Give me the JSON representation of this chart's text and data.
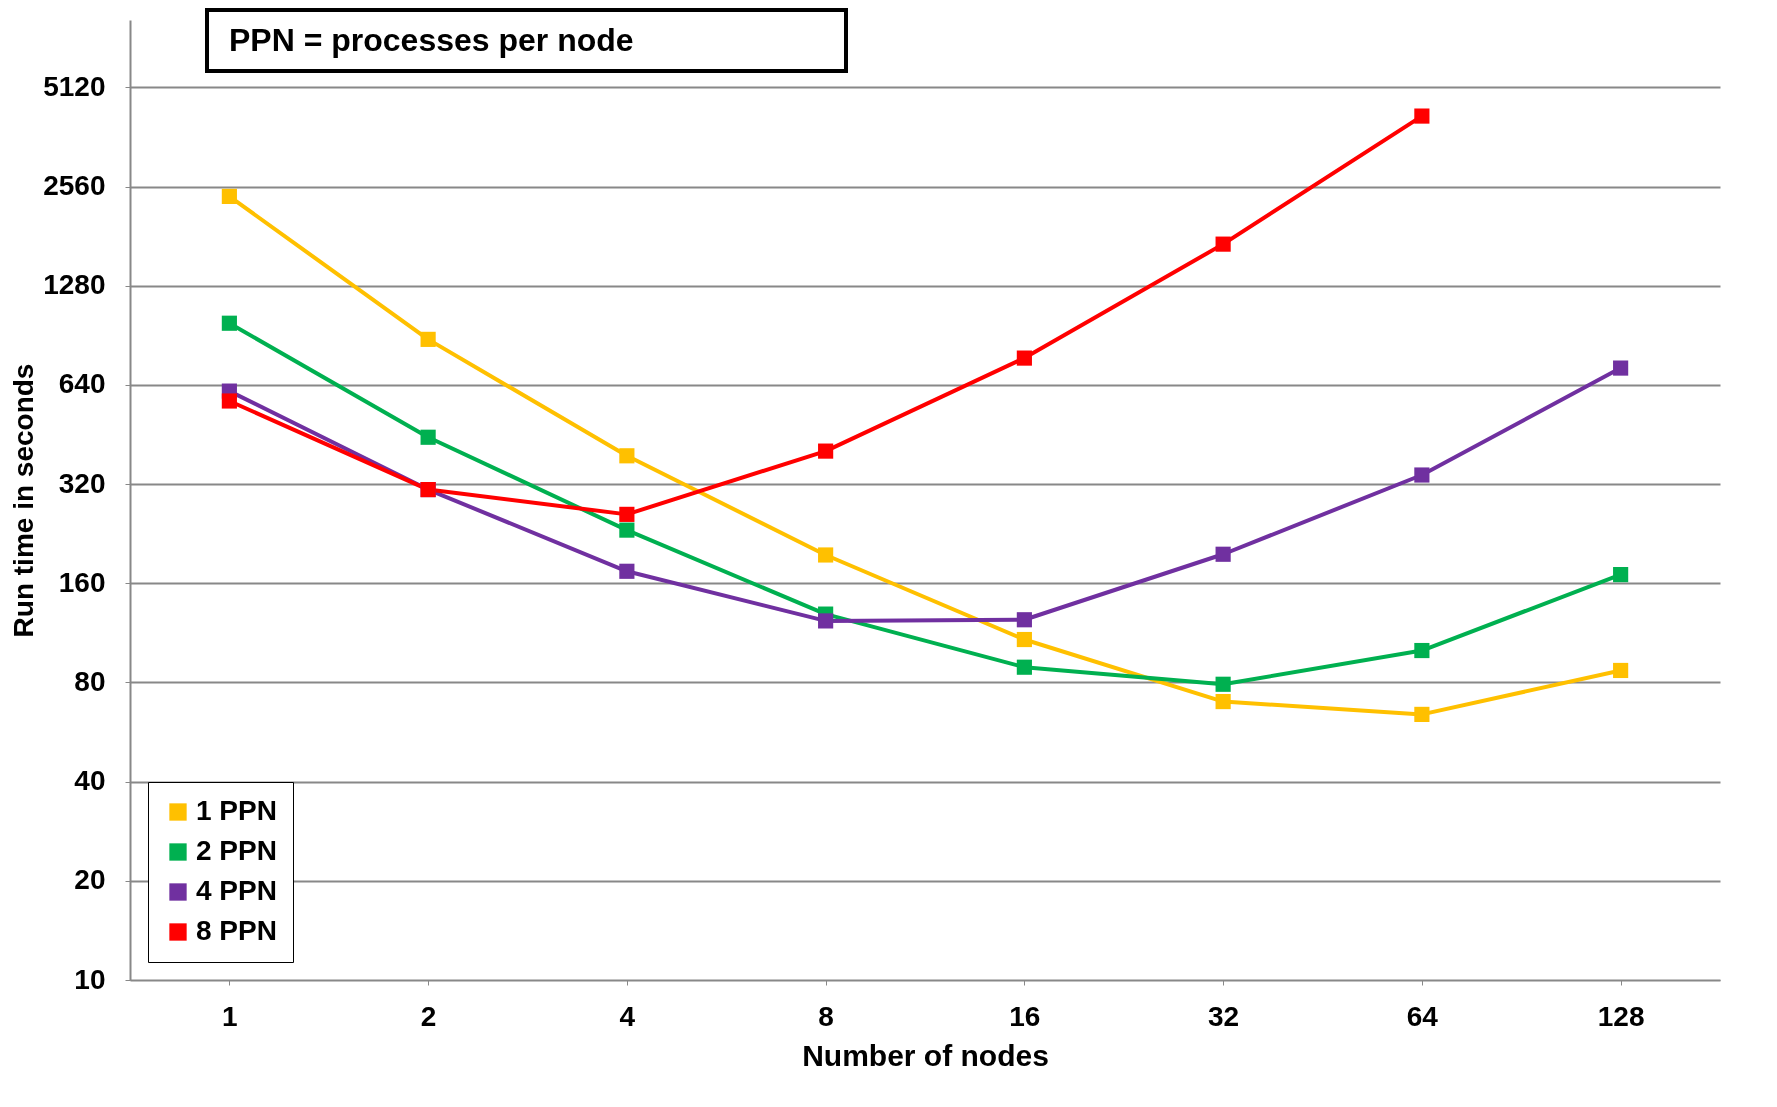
{
  "chart_data": {
    "type": "line",
    "title": "PPN = processes per node",
    "xlabel": "Number of nodes",
    "ylabel": "Run time in seconds",
    "categories": [
      "1",
      "2",
      "4",
      "8",
      "16",
      "32",
      "64",
      "128"
    ],
    "series": [
      {
        "name": "1 PPN",
        "color": "#ffc000",
        "values": [
          2390,
          880,
          390,
          195,
          108,
          70,
          64,
          87
        ]
      },
      {
        "name": "2 PPN",
        "color": "#00b050",
        "values": [
          985,
          444,
          232,
          129,
          89,
          79,
          100,
          170
        ]
      },
      {
        "name": "4 PPN",
        "color": "#7030a0",
        "values": [
          613,
          308,
          174,
          123,
          124,
          196,
          341,
          720
        ]
      },
      {
        "name": "8 PPN",
        "color": "#ff0000",
        "values": [
          572,
          308,
          259,
          403,
          772,
          1712,
          4190,
          null
        ]
      }
    ],
    "log": true,
    "ylim": [
      10,
      8200
    ],
    "yticks": [
      10,
      20,
      40,
      80,
      160,
      320,
      640,
      {
        "value": 1280,
        "label": "1280"
      },
      {
        "value": 2560,
        "label": "2560"
      },
      {
        "value": 5120,
        "label": "5120"
      }
    ],
    "grid": "y",
    "legend": "bottom left",
    "marker": "square",
    "line_style": "solid"
  }
}
